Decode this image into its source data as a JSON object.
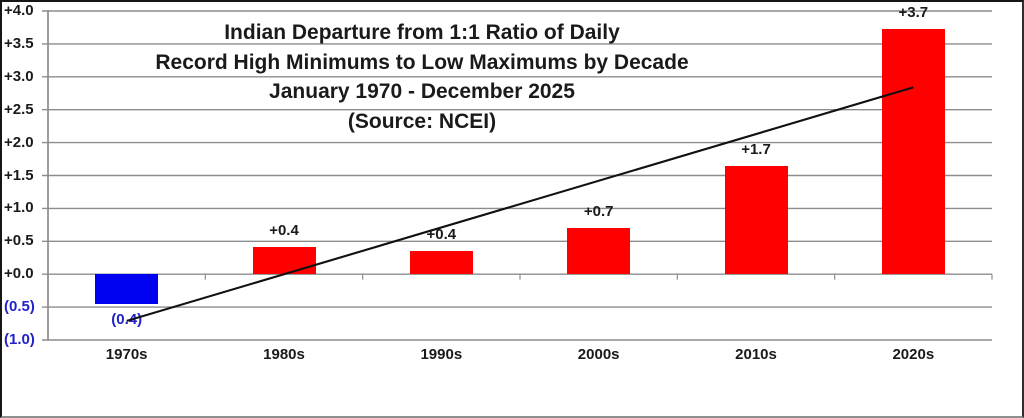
{
  "chart_data": {
    "type": "bar",
    "title_lines": [
      "Indian Departure from 1:1 Ratio of Daily",
      "Record High Minimums to Low Maximums by Decade",
      "January 1970 - December 2025",
      "(Source: NCEI)"
    ],
    "categories": [
      "1970s",
      "1980s",
      "1990s",
      "2000s",
      "2010s",
      "2020s"
    ],
    "values": [
      -0.4,
      0.4,
      0.4,
      0.7,
      1.7,
      3.7
    ],
    "values_plotted": [
      -0.45,
      0.42,
      0.36,
      0.7,
      1.65,
      3.73
    ],
    "data_labels": [
      "(0.4)",
      "+0.4",
      "+0.4",
      "+0.7",
      "+1.7",
      "+3.7"
    ],
    "xlabel": "",
    "ylabel": "",
    "y_axis": {
      "min": -1.0,
      "max": 4.0,
      "step": 0.5,
      "tick_values": [
        4.0,
        3.5,
        3.0,
        2.5,
        2.0,
        1.5,
        1.0,
        0.5,
        0.0,
        -0.5,
        -1.0
      ],
      "tick_labels": [
        "+4.0",
        "+3.5",
        "+3.0",
        "+2.5",
        "+2.0",
        "+1.5",
        "+1.0",
        "+0.5",
        "+0.0",
        "(0.5)",
        "(1.0)"
      ]
    },
    "trendline": {
      "type": "linear",
      "start_category": "1970s",
      "start_value": -0.71,
      "end_category": "2020s",
      "end_value": 2.84
    },
    "grid": "horizontal",
    "legend": "none"
  },
  "colors": {
    "positive_bar": "#ff0000",
    "negative_bar": "#0101f2",
    "negative_text": "#2222cc",
    "axis_text": "#1a1a1a",
    "gridline": "#8c8c8c",
    "trendline": "#111111",
    "background": "#ffffff"
  }
}
